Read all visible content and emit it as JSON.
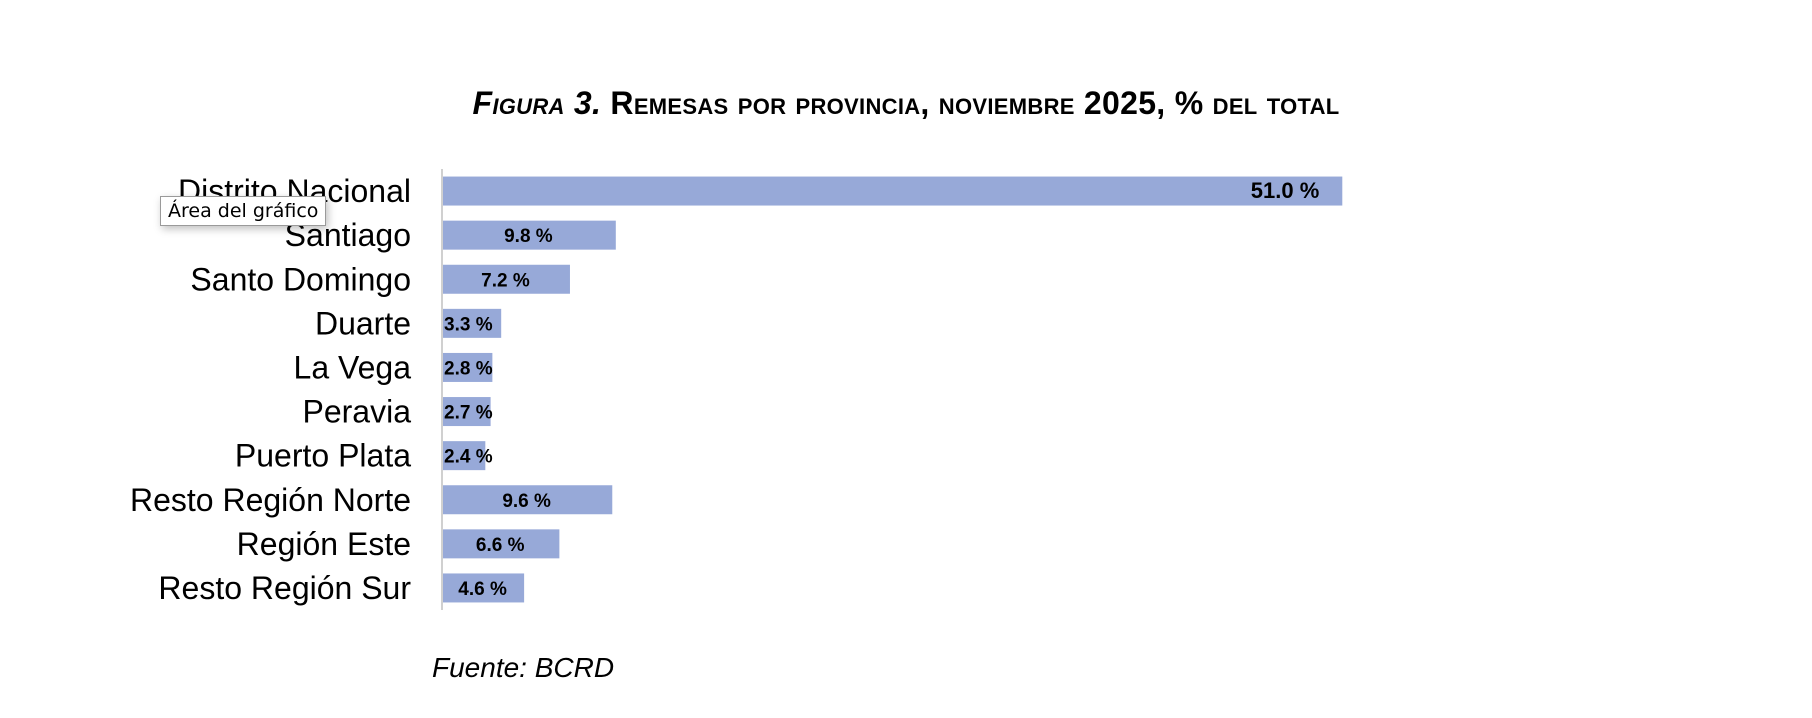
{
  "chart_data": {
    "type": "bar",
    "orientation": "horizontal",
    "title_prefix": "Figura 3.",
    "title": "Remesas por provincia, noviembre 2025, % del total",
    "categories": [
      "Distrito Nacional",
      "Santiago",
      "Santo Domingo",
      "Duarte",
      "La Vega",
      "Peravia",
      "Puerto Plata",
      "Resto Región Norte",
      "Región Este",
      "Resto Región Sur"
    ],
    "values": [
      51.0,
      9.8,
      7.2,
      3.3,
      2.8,
      2.7,
      2.4,
      9.6,
      6.6,
      4.6
    ],
    "data_labels": [
      "51.0 %",
      "9.8 %",
      "7.2 %",
      "3.3 %",
      "2.8 %",
      "2.7 %",
      "2.4 %",
      "9.6 %",
      "6.6 %",
      "4.6 %"
    ],
    "xlim": [
      0,
      60
    ],
    "bar_color": "#97a9d8",
    "grid": false,
    "legend": "none"
  },
  "tooltip": "Área del gráfico",
  "source": "Fuente: BCRD"
}
